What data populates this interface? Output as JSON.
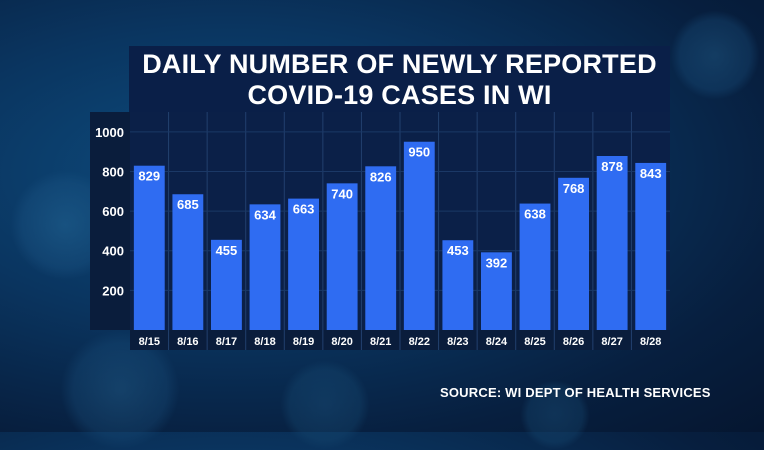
{
  "chart_data": {
    "type": "bar",
    "title_lines": [
      "DAILY NUMBER OF NEWLY REPORTED",
      "COVID-19 CASES IN WI"
    ],
    "categories": [
      "8/15",
      "8/16",
      "8/17",
      "8/18",
      "8/19",
      "8/20",
      "8/21",
      "8/22",
      "8/23",
      "8/24",
      "8/25",
      "8/26",
      "8/27",
      "8/28"
    ],
    "values": [
      829,
      685,
      455,
      634,
      663,
      740,
      826,
      950,
      453,
      392,
      638,
      768,
      878,
      843
    ],
    "y_ticks": [
      200,
      400,
      600,
      800,
      1000
    ],
    "ylim": [
      0,
      1100
    ],
    "xlabel": "",
    "ylabel": "",
    "grid": true,
    "bar_color": "#2f6cf2",
    "source": "SOURCE: WI DEPT OF HEALTH SERVICES"
  }
}
